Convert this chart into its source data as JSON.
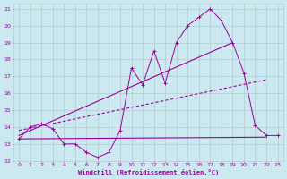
{
  "xlabel": "Windchill (Refroidissement éolien,°C)",
  "background_color": "#cce8f0",
  "grid_color": "#b0cccc",
  "line_color": "#990099",
  "xlim": [
    -0.5,
    23.5
  ],
  "ylim": [
    12,
    21.3
  ],
  "yticks": [
    12,
    13,
    14,
    15,
    16,
    17,
    18,
    19,
    20,
    21
  ],
  "xticks": [
    0,
    1,
    2,
    3,
    4,
    5,
    6,
    7,
    8,
    9,
    10,
    11,
    12,
    13,
    14,
    15,
    16,
    17,
    18,
    19,
    20,
    21,
    22,
    23
  ],
  "series1_x": [
    0,
    1,
    2,
    3,
    4,
    5,
    6,
    7,
    8,
    9,
    10,
    11,
    12,
    13,
    14,
    15,
    16,
    17,
    18,
    19,
    20,
    21,
    22,
    23
  ],
  "series1_y": [
    13.3,
    14.0,
    14.2,
    13.9,
    13.0,
    13.0,
    12.5,
    12.2,
    12.5,
    13.8,
    17.5,
    16.5,
    18.5,
    16.6,
    19.0,
    20.0,
    20.5,
    21.0,
    20.3,
    19.0,
    17.2,
    14.1,
    13.5,
    13.5
  ],
  "series2_x": [
    0,
    19
  ],
  "series2_y": [
    13.5,
    19.0
  ],
  "series3_x": [
    0,
    22
  ],
  "series3_y": [
    13.8,
    16.8
  ],
  "series4_x": [
    0,
    22
  ],
  "series4_y": [
    13.3,
    13.4
  ]
}
